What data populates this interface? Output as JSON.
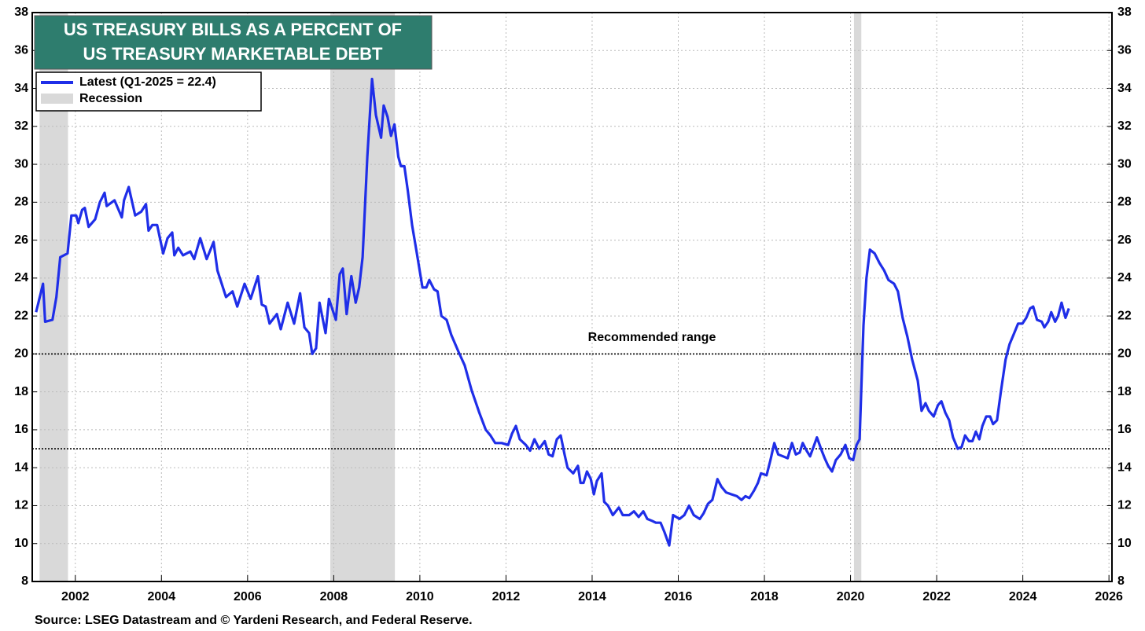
{
  "chart_data": {
    "type": "line",
    "title": [
      "US TREASURY BILLS AS A PERCENT OF",
      "US TREASURY MARKETABLE DEBT"
    ],
    "source": "Source: LSEG Datastream and © Yardeni Research, and Federal Reserve.",
    "annotation": "Recommended range",
    "reference_lines": [
      20,
      15
    ],
    "recession_label": "Recession",
    "recession_color": "#d9d9d9",
    "recessions": [
      [
        2001.17,
        2001.83
      ],
      [
        2007.92,
        2009.42
      ],
      [
        2020.08,
        2020.25
      ]
    ],
    "xlim": [
      2001,
      2026.07
    ],
    "ylim": [
      8,
      38
    ],
    "xticks": [
      2002,
      2004,
      2006,
      2008,
      2010,
      2012,
      2014,
      2016,
      2018,
      2020,
      2022,
      2024,
      2026
    ],
    "yticks": [
      8,
      10,
      12,
      14,
      16,
      18,
      20,
      22,
      24,
      26,
      28,
      30,
      32,
      34,
      36,
      38
    ],
    "grid": true,
    "x": [
      2001.09,
      2001.25,
      2001.3,
      2001.47,
      2001.56,
      2001.65,
      2001.82,
      2001.91,
      2002.02,
      2002.07,
      2002.16,
      2002.22,
      2002.31,
      2002.46,
      2002.57,
      2002.68,
      2002.73,
      2002.91,
      2003.08,
      2003.13,
      2003.24,
      2003.39,
      2003.53,
      2003.64,
      2003.7,
      2003.79,
      2003.9,
      2004.04,
      2004.14,
      2004.25,
      2004.3,
      2004.39,
      2004.5,
      2004.67,
      2004.76,
      2004.9,
      2005.05,
      2005.21,
      2005.3,
      2005.5,
      2005.65,
      2005.76,
      2005.93,
      2006.07,
      2006.24,
      2006.33,
      2006.42,
      2006.51,
      2006.68,
      2006.77,
      2006.93,
      2007.08,
      2007.22,
      2007.32,
      2007.43,
      2007.5,
      2007.59,
      2007.67,
      2007.81,
      2007.89,
      2008.05,
      2008.14,
      2008.21,
      2008.3,
      2008.41,
      2008.51,
      2008.59,
      2008.67,
      2008.78,
      2008.89,
      2008.98,
      2009.1,
      2009.16,
      2009.25,
      2009.33,
      2009.41,
      2009.5,
      2009.56,
      2009.64,
      2009.72,
      2009.82,
      2009.93,
      2010.06,
      2010.15,
      2010.22,
      2010.33,
      2010.41,
      2010.5,
      2010.62,
      2010.73,
      2010.9,
      2011.04,
      2011.2,
      2011.38,
      2011.53,
      2011.64,
      2011.75,
      2011.9,
      2012.05,
      2012.14,
      2012.23,
      2012.32,
      2012.46,
      2012.56,
      2012.66,
      2012.77,
      2012.9,
      2012.99,
      2013.08,
      2013.18,
      2013.27,
      2013.36,
      2013.43,
      2013.56,
      2013.67,
      2013.73,
      2013.8,
      2013.88,
      2013.97,
      2014.04,
      2014.11,
      2014.22,
      2014.28,
      2014.37,
      2014.48,
      2014.62,
      2014.71,
      2014.86,
      2014.97,
      2015.08,
      2015.19,
      2015.28,
      2015.39,
      2015.48,
      2015.59,
      2015.68,
      2015.79,
      2015.88,
      2016.03,
      2016.14,
      2016.25,
      2016.36,
      2016.5,
      2016.59,
      2016.69,
      2016.79,
      2016.91,
      2017.0,
      2017.11,
      2017.23,
      2017.36,
      2017.47,
      2017.56,
      2017.65,
      2017.76,
      2017.85,
      2017.92,
      2018.05,
      2018.14,
      2018.23,
      2018.32,
      2018.43,
      2018.54,
      2018.64,
      2018.73,
      2018.82,
      2018.89,
      2018.98,
      2019.06,
      2019.14,
      2019.22,
      2019.33,
      2019.4,
      2019.48,
      2019.57,
      2019.66,
      2019.77,
      2019.88,
      2019.97,
      2020.06,
      2020.14,
      2020.21,
      2020.3,
      2020.37,
      2020.45,
      2020.56,
      2020.67,
      2020.78,
      2020.88,
      2021.01,
      2021.1,
      2021.21,
      2021.32,
      2021.43,
      2021.56,
      2021.65,
      2021.74,
      2021.82,
      2021.93,
      2022.03,
      2022.11,
      2022.2,
      2022.29,
      2022.38,
      2022.49,
      2022.58,
      2022.66,
      2022.75,
      2022.83,
      2022.91,
      2022.99,
      2023.06,
      2023.15,
      2023.24,
      2023.31,
      2023.4,
      2023.49,
      2023.6,
      2023.69,
      2023.8,
      2023.89,
      2023.99,
      2024.08,
      2024.17,
      2024.24,
      2024.33,
      2024.44,
      2024.5,
      2024.59,
      2024.66,
      2024.75,
      2024.82,
      2024.9,
      2024.99,
      2025.07
    ],
    "series": [
      {
        "name": "Latest (Q1-2025 = 22.4)",
        "color": "#1f2ee8",
        "values": [
          22.2,
          23.7,
          21.7,
          21.8,
          23,
          25.1,
          25.3,
          27.3,
          27.3,
          26.9,
          27.6,
          27.7,
          26.7,
          27.1,
          28,
          28.5,
          27.8,
          28.1,
          27.2,
          28.1,
          28.8,
          27.3,
          27.5,
          27.9,
          26.5,
          26.8,
          26.8,
          25.3,
          26.1,
          26.4,
          25.2,
          25.6,
          25.2,
          25.4,
          25,
          26.1,
          25,
          25.9,
          24.4,
          23,
          23.3,
          22.5,
          23.7,
          22.9,
          24.1,
          22.6,
          22.5,
          21.6,
          22.1,
          21.3,
          22.7,
          21.6,
          23.2,
          21.4,
          21.1,
          20,
          20.3,
          22.7,
          21.1,
          22.9,
          21.8,
          24.2,
          24.5,
          22.1,
          24.1,
          22.7,
          23.5,
          25.1,
          30.4,
          34.5,
          32.6,
          31.4,
          33.1,
          32.5,
          31.5,
          32.1,
          30.4,
          29.9,
          29.9,
          28.6,
          26.8,
          25.3,
          23.5,
          23.5,
          23.9,
          23.4,
          23.3,
          22,
          21.8,
          21,
          20.1,
          19.4,
          18.1,
          16.9,
          16,
          15.7,
          15.3,
          15.3,
          15.2,
          15.8,
          16.2,
          15.5,
          15.2,
          14.9,
          15.5,
          15,
          15.4,
          14.7,
          14.6,
          15.5,
          15.7,
          14.7,
          14,
          13.7,
          14.1,
          13.2,
          13.2,
          13.8,
          13.4,
          12.6,
          13.3,
          13.7,
          12.2,
          12,
          11.5,
          11.9,
          11.5,
          11.5,
          11.7,
          11.4,
          11.7,
          11.3,
          11.2,
          11.1,
          11.1,
          10.6,
          9.9,
          11.5,
          11.3,
          11.5,
          12,
          11.5,
          11.3,
          11.6,
          12.1,
          12.3,
          13.4,
          13,
          12.7,
          12.6,
          12.5,
          12.3,
          12.5,
          12.4,
          12.8,
          13.2,
          13.7,
          13.6,
          14.4,
          15.3,
          14.7,
          14.6,
          14.5,
          15.3,
          14.7,
          14.8,
          15.3,
          14.9,
          14.6,
          15.1,
          15.6,
          14.9,
          14.5,
          14.1,
          13.8,
          14.4,
          14.7,
          15.2,
          14.5,
          14.4,
          15.2,
          15.5,
          21.5,
          24,
          25.5,
          25.3,
          24.8,
          24.4,
          23.9,
          23.7,
          23.3,
          21.9,
          20.9,
          19.7,
          18.6,
          17,
          17.4,
          17,
          16.7,
          17.3,
          17.5,
          16.9,
          16.5,
          15.6,
          15,
          15.1,
          15.7,
          15.4,
          15.4,
          15.9,
          15.5,
          16.2,
          16.7,
          16.7,
          16.3,
          16.5,
          18,
          19.7,
          20.5,
          21.1,
          21.6,
          21.6,
          21.9,
          22.4,
          22.5,
          21.8,
          21.7,
          21.4,
          21.7,
          22.2,
          21.7,
          22,
          22.7,
          21.9,
          22.4
        ]
      }
    ]
  }
}
